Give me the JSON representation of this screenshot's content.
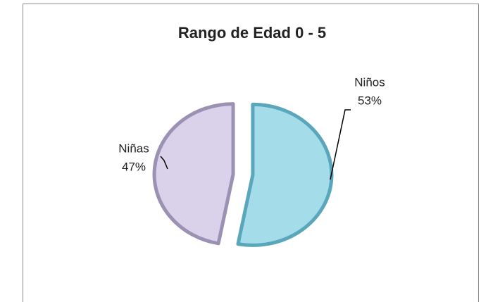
{
  "chart_data": {
    "type": "pie",
    "title": "Rango de Edad 0 - 5",
    "categories": [
      "Niños",
      "Niñas"
    ],
    "values": [
      53,
      47
    ],
    "value_labels": [
      "53%",
      "47%"
    ],
    "colors": [
      "#a4dcea",
      "#dad2ea"
    ],
    "edge_colors": [
      "#5aa7bb",
      "#9b91b3"
    ]
  }
}
